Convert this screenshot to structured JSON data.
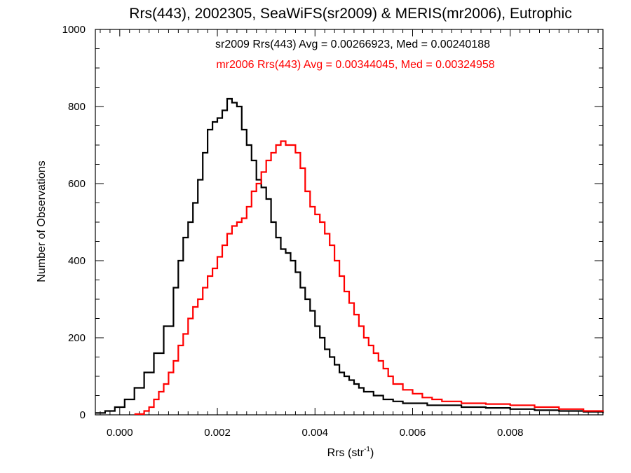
{
  "chart_data": {
    "type": "line",
    "title": "Rrs(443), 2002305, SeaWiFS(sr2009) & MERIS(mr2006), Eutrophic",
    "xlabel": "Rrs (str",
    "xlabel_sup": "-1",
    "xlabel_tail": ")",
    "ylabel": "Number of Observations",
    "xlim": [
      -0.0005,
      0.0099
    ],
    "ylim": [
      0,
      1000
    ],
    "xticks": [
      0.0,
      0.002,
      0.004,
      0.006,
      0.008
    ],
    "xtick_labels": [
      "0.000",
      "0.002",
      "0.004",
      "0.006",
      "0.008"
    ],
    "yticks": [
      0,
      200,
      400,
      600,
      800,
      1000
    ],
    "ytick_labels": [
      "0",
      "200",
      "400",
      "600",
      "800",
      "1000"
    ],
    "grid": false,
    "legend": "top-center",
    "series": [
      {
        "name": "sr2009 Rrs(443) Avg = 0.00266923, Med = 0.00240188",
        "color": "#000000",
        "x": [
          -0.0005,
          -0.0003,
          -0.0001,
          0.0001,
          0.0003,
          0.0005,
          0.0007,
          0.0009,
          0.0011,
          0.0012,
          0.0013,
          0.0014,
          0.0015,
          0.0016,
          0.0017,
          0.0018,
          0.0019,
          0.002,
          0.0021,
          0.0022,
          0.0023,
          0.0024,
          0.0025,
          0.0026,
          0.0027,
          0.0028,
          0.0029,
          0.003,
          0.0031,
          0.0032,
          0.0033,
          0.0034,
          0.0035,
          0.0036,
          0.0037,
          0.0038,
          0.0039,
          0.004,
          0.0041,
          0.0042,
          0.0043,
          0.0044,
          0.0045,
          0.0046,
          0.0047,
          0.0048,
          0.0049,
          0.005,
          0.0052,
          0.0054,
          0.0056,
          0.0058,
          0.006,
          0.0063,
          0.0066,
          0.007,
          0.0075,
          0.008,
          0.0085,
          0.009,
          0.0095,
          0.0099
        ],
        "y": [
          5,
          10,
          20,
          40,
          70,
          110,
          160,
          230,
          330,
          400,
          460,
          500,
          550,
          610,
          680,
          740,
          760,
          770,
          790,
          820,
          810,
          800,
          740,
          700,
          660,
          610,
          590,
          560,
          500,
          460,
          430,
          420,
          400,
          370,
          330,
          300,
          270,
          230,
          200,
          170,
          150,
          130,
          110,
          100,
          90,
          80,
          70,
          60,
          50,
          40,
          35,
          30,
          30,
          25,
          25,
          20,
          18,
          15,
          12,
          10,
          8,
          5
        ]
      },
      {
        "name": "mr2006 Rrs(443) Avg = 0.00344045, Med = 0.00324958",
        "color": "#ff0000",
        "x": [
          0.0003,
          0.0005,
          0.0006,
          0.0007,
          0.0008,
          0.0009,
          0.001,
          0.0011,
          0.0012,
          0.0013,
          0.0014,
          0.0015,
          0.0016,
          0.0017,
          0.0018,
          0.0019,
          0.002,
          0.0021,
          0.0022,
          0.0023,
          0.0024,
          0.0025,
          0.0026,
          0.0027,
          0.0028,
          0.0029,
          0.003,
          0.0031,
          0.0032,
          0.0033,
          0.0034,
          0.0035,
          0.0036,
          0.0037,
          0.0038,
          0.0039,
          0.004,
          0.0041,
          0.0042,
          0.0043,
          0.0044,
          0.0045,
          0.0046,
          0.0047,
          0.0048,
          0.0049,
          0.005,
          0.0051,
          0.0052,
          0.0053,
          0.0054,
          0.0055,
          0.0056,
          0.0058,
          0.006,
          0.0062,
          0.0064,
          0.0066,
          0.0068,
          0.007,
          0.0075,
          0.008,
          0.0085,
          0.009,
          0.0095,
          0.0099
        ],
        "y": [
          2,
          10,
          20,
          40,
          60,
          80,
          110,
          140,
          180,
          210,
          250,
          280,
          300,
          330,
          360,
          380,
          410,
          440,
          470,
          490,
          500,
          510,
          540,
          580,
          600,
          630,
          660,
          680,
          700,
          710,
          700,
          700,
          680,
          640,
          580,
          540,
          520,
          500,
          470,
          440,
          400,
          360,
          320,
          290,
          260,
          230,
          200,
          180,
          160,
          140,
          120,
          100,
          80,
          65,
          55,
          45,
          40,
          35,
          35,
          30,
          28,
          25,
          20,
          15,
          10,
          8
        ]
      }
    ]
  }
}
